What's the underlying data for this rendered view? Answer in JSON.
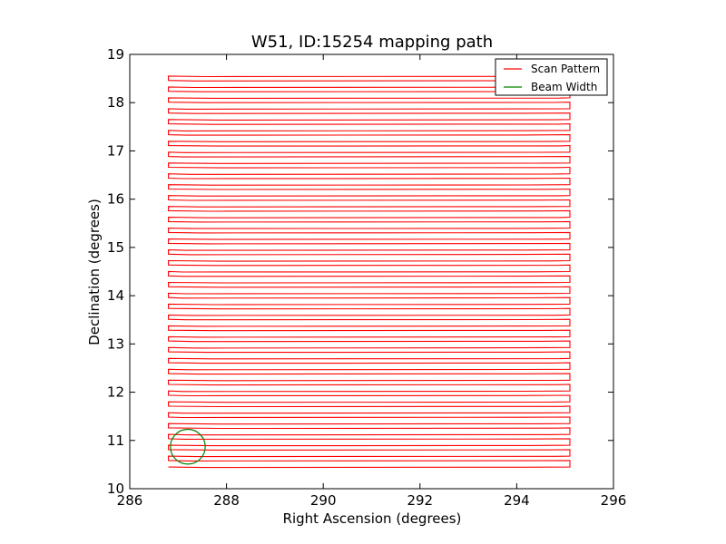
{
  "chart_data": {
    "type": "line",
    "title": "W51, ID:15254 mapping path",
    "xlabel": "Right Ascension (degrees)",
    "ylabel": "Declination (degrees)",
    "xlim": [
      286,
      296
    ],
    "ylim": [
      10,
      19
    ],
    "xticks": [
      286,
      288,
      290,
      292,
      294,
      296
    ],
    "yticks": [
      10,
      11,
      12,
      13,
      14,
      15,
      16,
      17,
      18,
      19
    ],
    "grid": false,
    "legend_position": "top-right",
    "series": [
      {
        "name": "Scan Pattern",
        "color": "#ff0000",
        "scan": {
          "ra_left": 286.8,
          "ra_right": 295.1,
          "ra_left_inner_min": 287.1,
          "ra_left_inner_max": 287.9,
          "ra_right_inner_min": 294.1,
          "ra_right_inner_max": 294.9,
          "dec_start": 10.45,
          "dec_end": 18.55,
          "dec_step": 0.135,
          "left_jump": 0.09,
          "right_jump": 0.135
        }
      },
      {
        "name": "Beam Width",
        "color": "#008000",
        "circle": {
          "ra_center": 287.2,
          "dec_center": 10.87,
          "radius_deg": 0.36
        }
      }
    ]
  }
}
